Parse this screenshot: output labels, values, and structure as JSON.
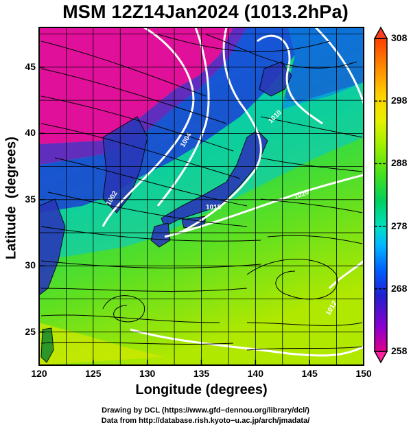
{
  "title": "MSM 12Z14Jan2024 (1013.2hPa)",
  "map": {
    "lon_range": [
      120,
      150
    ],
    "lat_range": [
      22.5,
      48
    ],
    "xlabel": "Longitude (degrees)",
    "ylabel": "Latitude  (degrees)",
    "x_ticks": [
      120,
      125,
      130,
      135,
      140,
      145,
      150
    ],
    "y_ticks": [
      25,
      30,
      35,
      40,
      45
    ],
    "grid": true
  },
  "colorbar": {
    "ticks": [
      258,
      268,
      278,
      288,
      298,
      308
    ],
    "min": 258,
    "max": 308,
    "colors": [
      "#e0008a",
      "#8a00d0",
      "#2020d0",
      "#0060ff",
      "#00b8ff",
      "#00e0c0",
      "#00d060",
      "#40e020",
      "#a0f000",
      "#e8f000",
      "#ffd000",
      "#ff9000",
      "#ff4000"
    ]
  },
  "contour_labels": [
    "1002",
    "1004",
    "1010",
    "1018",
    "1020",
    "1012"
  ],
  "credits": {
    "line1": "Drawing by DCL (https://www.gfd−dennou.org/library/dcl/)",
    "line2": "Data from http://database.rish.kyoto−u.ac.jp/arch/jmadata/"
  }
}
